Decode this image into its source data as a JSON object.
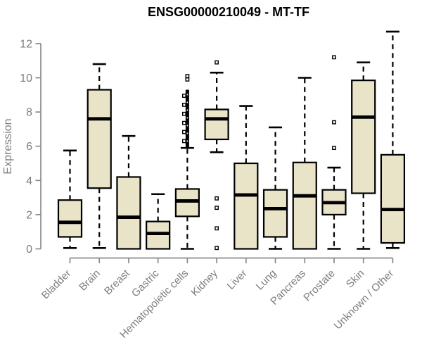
{
  "chart_data": {
    "type": "boxplot",
    "title": "ENSG00000210049 - MT-TF",
    "ylabel": "Expression",
    "xlabel": "",
    "ylim": [
      0,
      12.7
    ],
    "yticks": [
      0,
      2,
      4,
      6,
      8,
      10,
      12
    ],
    "grid": false,
    "legend": "none",
    "categories": [
      "Bladder",
      "Brain",
      "Breast",
      "Gastric",
      "Hematopoietic cells",
      "Kidney",
      "Liver",
      "Lung",
      "Pancreas",
      "Prostate",
      "Skin",
      "Unknown / Other"
    ],
    "series": [
      {
        "name": "Bladder",
        "whisker_low": 0.05,
        "q1": 0.7,
        "median": 1.55,
        "q3": 2.85,
        "whisker_high": 5.75,
        "outliers": []
      },
      {
        "name": "Brain",
        "whisker_low": 0.05,
        "q1": 3.55,
        "median": 7.6,
        "q3": 9.3,
        "whisker_high": 10.8,
        "outliers": []
      },
      {
        "name": "Breast",
        "whisker_low": 0.0,
        "q1": 0.0,
        "median": 1.85,
        "q3": 4.2,
        "whisker_high": 6.6,
        "outliers": []
      },
      {
        "name": "Gastric",
        "whisker_low": 0.0,
        "q1": 0.0,
        "median": 0.9,
        "q3": 1.6,
        "whisker_high": 3.2,
        "outliers": []
      },
      {
        "name": "Hematopoietic cells",
        "whisker_low": 0.0,
        "q1": 1.9,
        "median": 2.8,
        "q3": 3.5,
        "whisker_high": 5.9,
        "outliers": [
          9.9,
          10.1
        ],
        "outlier_band": [
          5.95,
          9.3
        ]
      },
      {
        "name": "Kidney",
        "whisker_low": 5.65,
        "q1": 6.4,
        "median": 7.6,
        "q3": 8.15,
        "whisker_high": 10.3,
        "outliers": [
          10.9,
          2.95,
          2.4,
          1.2,
          0.05
        ]
      },
      {
        "name": "Liver",
        "whisker_low": 0.0,
        "q1": 0.0,
        "median": 3.15,
        "q3": 5.0,
        "whisker_high": 8.35,
        "outliers": []
      },
      {
        "name": "Lung",
        "whisker_low": 0.0,
        "q1": 0.7,
        "median": 2.35,
        "q3": 3.45,
        "whisker_high": 7.1,
        "outliers": []
      },
      {
        "name": "Pancreas",
        "whisker_low": 0.0,
        "q1": 0.0,
        "median": 3.1,
        "q3": 5.05,
        "whisker_high": 10.0,
        "outliers": []
      },
      {
        "name": "Prostate",
        "whisker_low": 0.0,
        "q1": 2.0,
        "median": 2.7,
        "q3": 3.45,
        "whisker_high": 4.75,
        "outliers": [
          11.2,
          7.4,
          5.9
        ]
      },
      {
        "name": "Skin",
        "whisker_low": 0.0,
        "q1": 3.25,
        "median": 7.7,
        "q3": 9.85,
        "whisker_high": 10.9,
        "outliers": []
      },
      {
        "name": "Unknown / Other",
        "whisker_low": 0.05,
        "q1": 0.35,
        "median": 2.3,
        "q3": 5.5,
        "whisker_high": 12.7,
        "outliers": []
      }
    ],
    "colors": {
      "box_fill": "#e9e3c8",
      "box_stroke": "#000000",
      "median": "#000000",
      "whisker": "#000000",
      "axis_line": "#8a8a8a",
      "tick_label": "#7d7d7d",
      "title": "#000000",
      "background": "#ffffff"
    }
  }
}
